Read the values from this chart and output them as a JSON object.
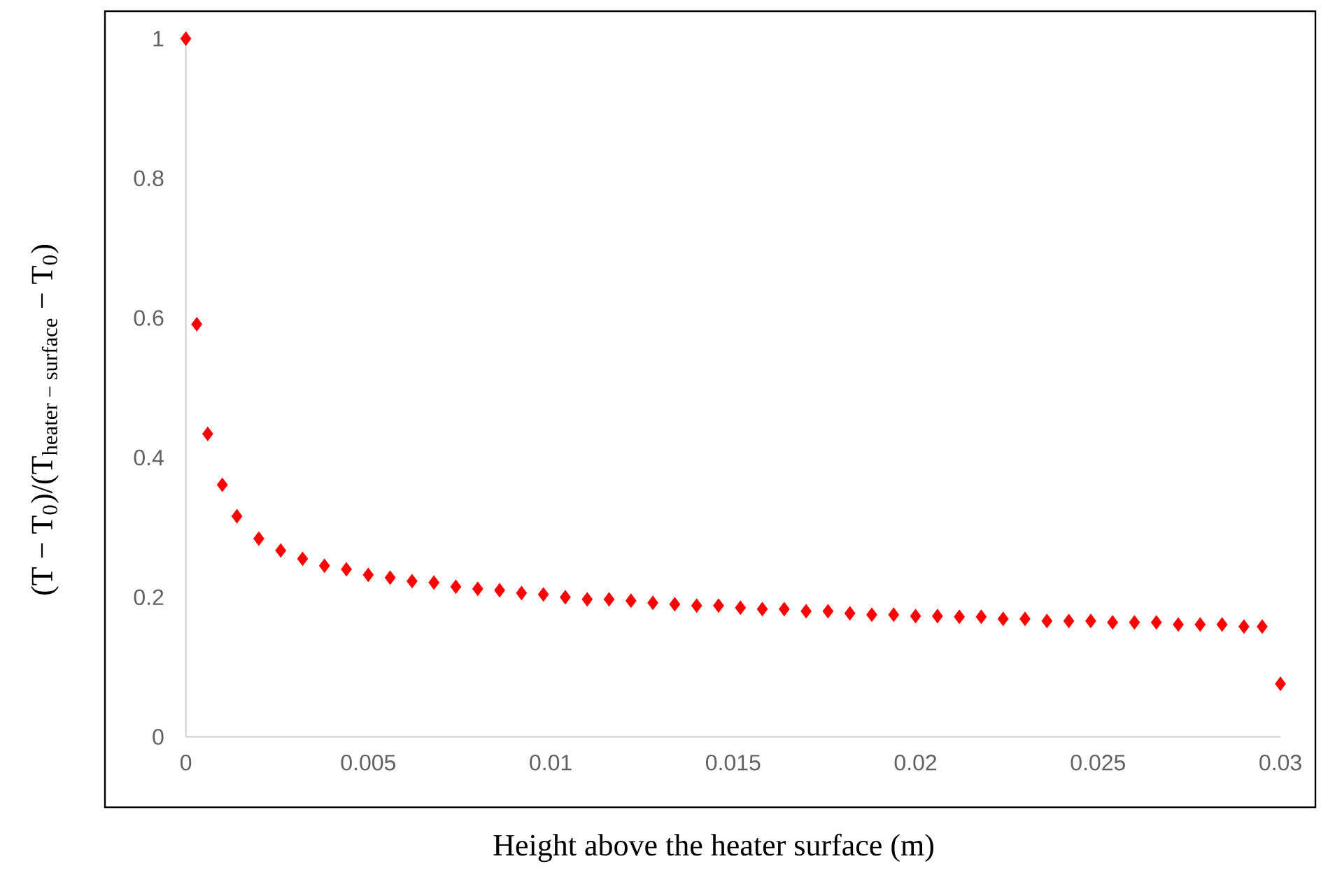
{
  "chart_data": {
    "type": "scatter",
    "xlabel": "Height above the heater surface (m)",
    "ylabel": "(T − T$_{0}$)/(T$_{heater − surface}$ − T$_{0}$)",
    "x": [
      0,
      0.0003,
      0.0006,
      0.001,
      0.0014,
      0.002,
      0.0026,
      0.0032,
      0.0038,
      0.0044,
      0.005,
      0.0056,
      0.0062,
      0.0068,
      0.0074,
      0.008,
      0.0086,
      0.0092,
      0.0098,
      0.0104,
      0.011,
      0.0116,
      0.0122,
      0.0128,
      0.0134,
      0.014,
      0.0146,
      0.0152,
      0.0158,
      0.0164,
      0.017,
      0.0176,
      0.0182,
      0.0188,
      0.0194,
      0.02,
      0.0206,
      0.0212,
      0.0218,
      0.0224,
      0.023,
      0.0236,
      0.0242,
      0.0248,
      0.0254,
      0.026,
      0.0266,
      0.0272,
      0.0278,
      0.0284,
      0.029,
      0.0295,
      0.03
    ],
    "values": [
      1,
      0.591,
      0.434,
      0.361,
      0.316,
      0.284,
      0.267,
      0.255,
      0.245,
      0.24,
      0.232,
      0.228,
      0.223,
      0.221,
      0.215,
      0.212,
      0.21,
      0.206,
      0.204,
      0.2,
      0.197,
      0.197,
      0.195,
      0.192,
      0.19,
      0.188,
      0.188,
      0.185,
      0.183,
      0.183,
      0.18,
      0.18,
      0.177,
      0.175,
      0.175,
      0.173,
      0.173,
      0.172,
      0.172,
      0.169,
      0.169,
      0.166,
      0.166,
      0.166,
      0.164,
      0.164,
      0.164,
      0.161,
      0.161,
      0.161,
      0.158,
      0.158,
      0.076
    ],
    "color": "#ff0000",
    "marker": "diamond",
    "xlim": [
      0,
      0.03
    ],
    "ylim": [
      0,
      1
    ],
    "xticks": [
      0,
      0.005,
      0.01,
      0.015,
      0.02,
      0.025,
      0.03
    ],
    "yticks": [
      0,
      0.2,
      0.4,
      0.6,
      0.8,
      1
    ]
  }
}
